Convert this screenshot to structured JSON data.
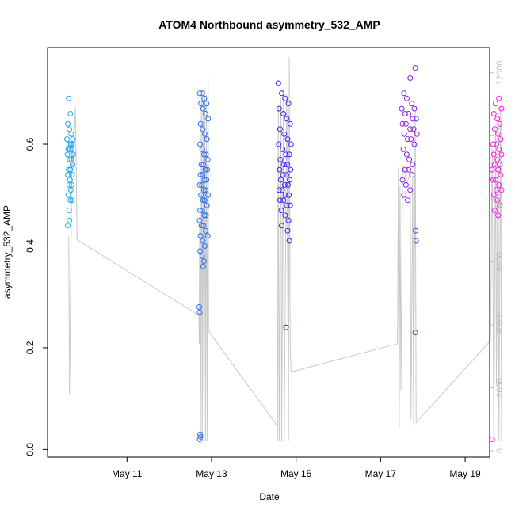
{
  "chart_data": {
    "type": "scatter",
    "title": "ATOM4 Northbound asymmetry_532_AMP",
    "xlabel": "Date",
    "ylabel": "asymmetry_532_AMP",
    "x_axis": {
      "unit": "days after May 10",
      "range": [
        9.12,
        19.58
      ],
      "ticks": [
        {
          "value": 11,
          "label": "May 11"
        },
        {
          "value": 13,
          "label": "May 13"
        },
        {
          "value": 15,
          "label": "May 15"
        },
        {
          "value": 17,
          "label": "May 17"
        },
        {
          "value": 19,
          "label": "May 19"
        }
      ]
    },
    "y_axis": {
      "range": [
        -0.015,
        0.79
      ],
      "ticks": [
        0.0,
        0.2,
        0.4,
        0.6
      ],
      "tick_labels": [
        "0.0",
        "0.2",
        "0.4",
        "0.6"
      ]
    },
    "y2_axis": {
      "range": [
        -200,
        12800
      ],
      "ticks": [
        0,
        2000,
        4000,
        6000,
        8000,
        10000,
        12000
      ],
      "tick_labels": [
        "0",
        "2000",
        "4000",
        "6000",
        "8000",
        "10000",
        "12000"
      ],
      "color": "#bdbdbd"
    },
    "grid": false,
    "legend": "none",
    "series": [
      {
        "color": "#1ea7f0",
        "points": [
          [
            9.62,
            0.69
          ],
          [
            9.66,
            0.66
          ],
          [
            9.6,
            0.64
          ],
          [
            9.64,
            0.63
          ],
          [
            9.68,
            0.62
          ],
          [
            9.72,
            0.61
          ],
          [
            9.58,
            0.61
          ],
          [
            9.63,
            0.6
          ],
          [
            9.67,
            0.6
          ],
          [
            9.7,
            0.6
          ],
          [
            9.61,
            0.59
          ],
          [
            9.65,
            0.59
          ],
          [
            9.69,
            0.59
          ],
          [
            9.73,
            0.58
          ],
          [
            9.59,
            0.58
          ],
          [
            9.64,
            0.57
          ],
          [
            9.68,
            0.57
          ],
          [
            9.71,
            0.56
          ],
          [
            9.62,
            0.55
          ],
          [
            9.66,
            0.55
          ],
          [
            9.7,
            0.54
          ],
          [
            9.6,
            0.54
          ],
          [
            9.65,
            0.53
          ],
          [
            9.69,
            0.52
          ],
          [
            9.63,
            0.52
          ],
          [
            9.67,
            0.51
          ],
          [
            9.61,
            0.5
          ],
          [
            9.66,
            0.49
          ],
          [
            9.7,
            0.49
          ],
          [
            9.63,
            0.47
          ],
          [
            9.64,
            0.45
          ],
          [
            9.6,
            0.44
          ]
        ]
      },
      {
        "color": "#2a6ff0",
        "points": [
          [
            12.72,
            0.7
          ],
          [
            12.78,
            0.7
          ],
          [
            12.83,
            0.69
          ],
          [
            12.88,
            0.68
          ],
          [
            12.75,
            0.68
          ],
          [
            12.8,
            0.67
          ],
          [
            12.86,
            0.66
          ],
          [
            12.92,
            0.65
          ],
          [
            12.74,
            0.64
          ],
          [
            12.79,
            0.63
          ],
          [
            12.84,
            0.62
          ],
          [
            12.89,
            0.61
          ],
          [
            12.73,
            0.6
          ],
          [
            12.78,
            0.59
          ],
          [
            12.82,
            0.58
          ],
          [
            12.87,
            0.58
          ],
          [
            12.91,
            0.57
          ],
          [
            12.76,
            0.56
          ],
          [
            12.81,
            0.56
          ],
          [
            12.85,
            0.55
          ],
          [
            12.9,
            0.55
          ],
          [
            12.74,
            0.54
          ],
          [
            12.79,
            0.54
          ],
          [
            12.83,
            0.53
          ],
          [
            12.88,
            0.53
          ],
          [
            12.72,
            0.52
          ],
          [
            12.77,
            0.52
          ],
          [
            12.82,
            0.51
          ],
          [
            12.86,
            0.51
          ],
          [
            12.92,
            0.5
          ],
          [
            12.75,
            0.5
          ],
          [
            12.8,
            0.49
          ],
          [
            12.84,
            0.49
          ],
          [
            12.89,
            0.48
          ],
          [
            12.73,
            0.47
          ],
          [
            12.78,
            0.47
          ],
          [
            12.83,
            0.46
          ],
          [
            12.87,
            0.46
          ],
          [
            12.72,
            0.45
          ],
          [
            12.76,
            0.44
          ],
          [
            12.81,
            0.44
          ],
          [
            12.86,
            0.43
          ],
          [
            12.91,
            0.42
          ],
          [
            12.74,
            0.42
          ],
          [
            12.79,
            0.41
          ],
          [
            12.84,
            0.4
          ],
          [
            12.73,
            0.39
          ],
          [
            12.78,
            0.38
          ],
          [
            12.82,
            0.37
          ],
          [
            12.8,
            0.36
          ],
          [
            12.71,
            0.28
          ],
          [
            12.72,
            0.27
          ],
          [
            12.73,
            0.03
          ],
          [
            12.74,
            0.025
          ],
          [
            12.72,
            0.02
          ]
        ]
      },
      {
        "color": "#3a1ff0",
        "points": [
          [
            14.58,
            0.72
          ],
          [
            14.66,
            0.7
          ],
          [
            14.74,
            0.69
          ],
          [
            14.82,
            0.68
          ],
          [
            14.6,
            0.67
          ],
          [
            14.7,
            0.66
          ],
          [
            14.78,
            0.65
          ],
          [
            14.86,
            0.64
          ],
          [
            14.62,
            0.63
          ],
          [
            14.72,
            0.62
          ],
          [
            14.8,
            0.61
          ],
          [
            14.88,
            0.6
          ],
          [
            14.59,
            0.6
          ],
          [
            14.68,
            0.59
          ],
          [
            14.76,
            0.58
          ],
          [
            14.84,
            0.58
          ],
          [
            14.63,
            0.57
          ],
          [
            14.71,
            0.56
          ],
          [
            14.79,
            0.56
          ],
          [
            14.87,
            0.55
          ],
          [
            14.61,
            0.55
          ],
          [
            14.69,
            0.54
          ],
          [
            14.77,
            0.54
          ],
          [
            14.85,
            0.53
          ],
          [
            14.64,
            0.53
          ],
          [
            14.73,
            0.52
          ],
          [
            14.81,
            0.52
          ],
          [
            14.6,
            0.51
          ],
          [
            14.67,
            0.51
          ],
          [
            14.75,
            0.5
          ],
          [
            14.83,
            0.5
          ],
          [
            14.62,
            0.49
          ],
          [
            14.7,
            0.49
          ],
          [
            14.78,
            0.48
          ],
          [
            14.86,
            0.48
          ],
          [
            14.65,
            0.47
          ],
          [
            14.74,
            0.46
          ],
          [
            14.82,
            0.45
          ],
          [
            14.66,
            0.44
          ],
          [
            14.8,
            0.43
          ],
          [
            14.84,
            0.41
          ],
          [
            14.76,
            0.24
          ]
        ]
      },
      {
        "color": "#8a1df0",
        "points": [
          [
            17.82,
            0.75
          ],
          [
            17.7,
            0.73
          ],
          [
            17.55,
            0.7
          ],
          [
            17.62,
            0.69
          ],
          [
            17.74,
            0.68
          ],
          [
            17.8,
            0.67
          ],
          [
            17.5,
            0.67
          ],
          [
            17.58,
            0.66
          ],
          [
            17.66,
            0.66
          ],
          [
            17.76,
            0.65
          ],
          [
            17.84,
            0.65
          ],
          [
            17.52,
            0.64
          ],
          [
            17.6,
            0.64
          ],
          [
            17.7,
            0.63
          ],
          [
            17.78,
            0.63
          ],
          [
            17.86,
            0.62
          ],
          [
            17.56,
            0.62
          ],
          [
            17.64,
            0.61
          ],
          [
            17.72,
            0.61
          ],
          [
            17.8,
            0.6
          ],
          [
            17.54,
            0.59
          ],
          [
            17.62,
            0.58
          ],
          [
            17.68,
            0.57
          ],
          [
            17.76,
            0.56
          ],
          [
            17.58,
            0.55
          ],
          [
            17.66,
            0.55
          ],
          [
            17.74,
            0.54
          ],
          [
            17.52,
            0.53
          ],
          [
            17.6,
            0.52
          ],
          [
            17.7,
            0.51
          ],
          [
            17.55,
            0.5
          ],
          [
            17.64,
            0.49
          ],
          [
            17.83,
            0.43
          ],
          [
            17.84,
            0.41
          ],
          [
            17.82,
            0.23
          ]
        ]
      },
      {
        "color": "#f01dd8",
        "points": [
          [
            19.8,
            0.69
          ],
          [
            19.72,
            0.68
          ],
          [
            19.86,
            0.67
          ],
          [
            19.68,
            0.66
          ],
          [
            19.76,
            0.65
          ],
          [
            19.82,
            0.64
          ],
          [
            19.7,
            0.63
          ],
          [
            19.78,
            0.62
          ],
          [
            19.84,
            0.61
          ],
          [
            19.66,
            0.6
          ],
          [
            19.74,
            0.6
          ],
          [
            19.8,
            0.59
          ],
          [
            19.86,
            0.58
          ],
          [
            19.68,
            0.58
          ],
          [
            19.76,
            0.57
          ],
          [
            19.82,
            0.56
          ],
          [
            19.7,
            0.56
          ],
          [
            19.64,
            0.55
          ],
          [
            19.78,
            0.55
          ],
          [
            19.84,
            0.54
          ],
          [
            19.72,
            0.53
          ],
          [
            19.66,
            0.53
          ],
          [
            19.8,
            0.52
          ],
          [
            19.74,
            0.51
          ],
          [
            19.86,
            0.51
          ],
          [
            19.68,
            0.5
          ],
          [
            19.76,
            0.49
          ],
          [
            19.82,
            0.48
          ],
          [
            19.7,
            0.47
          ],
          [
            19.78,
            0.46
          ],
          [
            19.64,
            0.02
          ]
        ]
      }
    ],
    "secondary_line": {
      "color": "#c8c8c8",
      "points": [
        [
          9.62,
          6800
        ],
        [
          9.64,
          1800
        ],
        [
          9.7,
          9800
        ],
        [
          9.72,
          9000
        ],
        [
          9.78,
          10900
        ],
        [
          9.82,
          6700
        ],
        [
          12.7,
          4300
        ],
        [
          12.71,
          3400
        ],
        [
          12.72,
          7400
        ],
        [
          12.74,
          300
        ],
        [
          12.76,
          11300
        ],
        [
          12.78,
          300
        ],
        [
          12.8,
          11100
        ],
        [
          12.82,
          300
        ],
        [
          12.84,
          11500
        ],
        [
          12.86,
          300
        ],
        [
          12.88,
          11300
        ],
        [
          12.9,
          300
        ],
        [
          12.92,
          11800
        ],
        [
          12.93,
          3800
        ],
        [
          14.55,
          800
        ],
        [
          14.56,
          300
        ],
        [
          14.58,
          10900
        ],
        [
          14.6,
          300
        ],
        [
          14.64,
          11200
        ],
        [
          14.66,
          300
        ],
        [
          14.7,
          11500
        ],
        [
          14.72,
          300
        ],
        [
          14.78,
          11300
        ],
        [
          14.82,
          300
        ],
        [
          14.84,
          12500
        ],
        [
          14.86,
          3500
        ],
        [
          14.88,
          2500
        ],
        [
          17.4,
          3400
        ],
        [
          17.42,
          9000
        ],
        [
          17.44,
          700
        ],
        [
          17.46,
          8400
        ],
        [
          17.48,
          1900
        ],
        [
          17.52,
          9000
        ],
        [
          17.58,
          8800
        ],
        [
          17.62,
          8500
        ],
        [
          17.7,
          8800
        ],
        [
          17.72,
          1000
        ],
        [
          17.76,
          8700
        ],
        [
          17.78,
          800
        ],
        [
          17.82,
          10800
        ],
        [
          17.84,
          900
        ],
        [
          19.6,
          3500
        ],
        [
          19.64,
          9600
        ],
        [
          19.68,
          300
        ],
        [
          19.72,
          10200
        ],
        [
          19.74,
          2100
        ],
        [
          19.78,
          10800
        ],
        [
          19.8,
          300
        ],
        [
          19.84,
          11000
        ],
        [
          19.86,
          300
        ]
      ]
    }
  }
}
